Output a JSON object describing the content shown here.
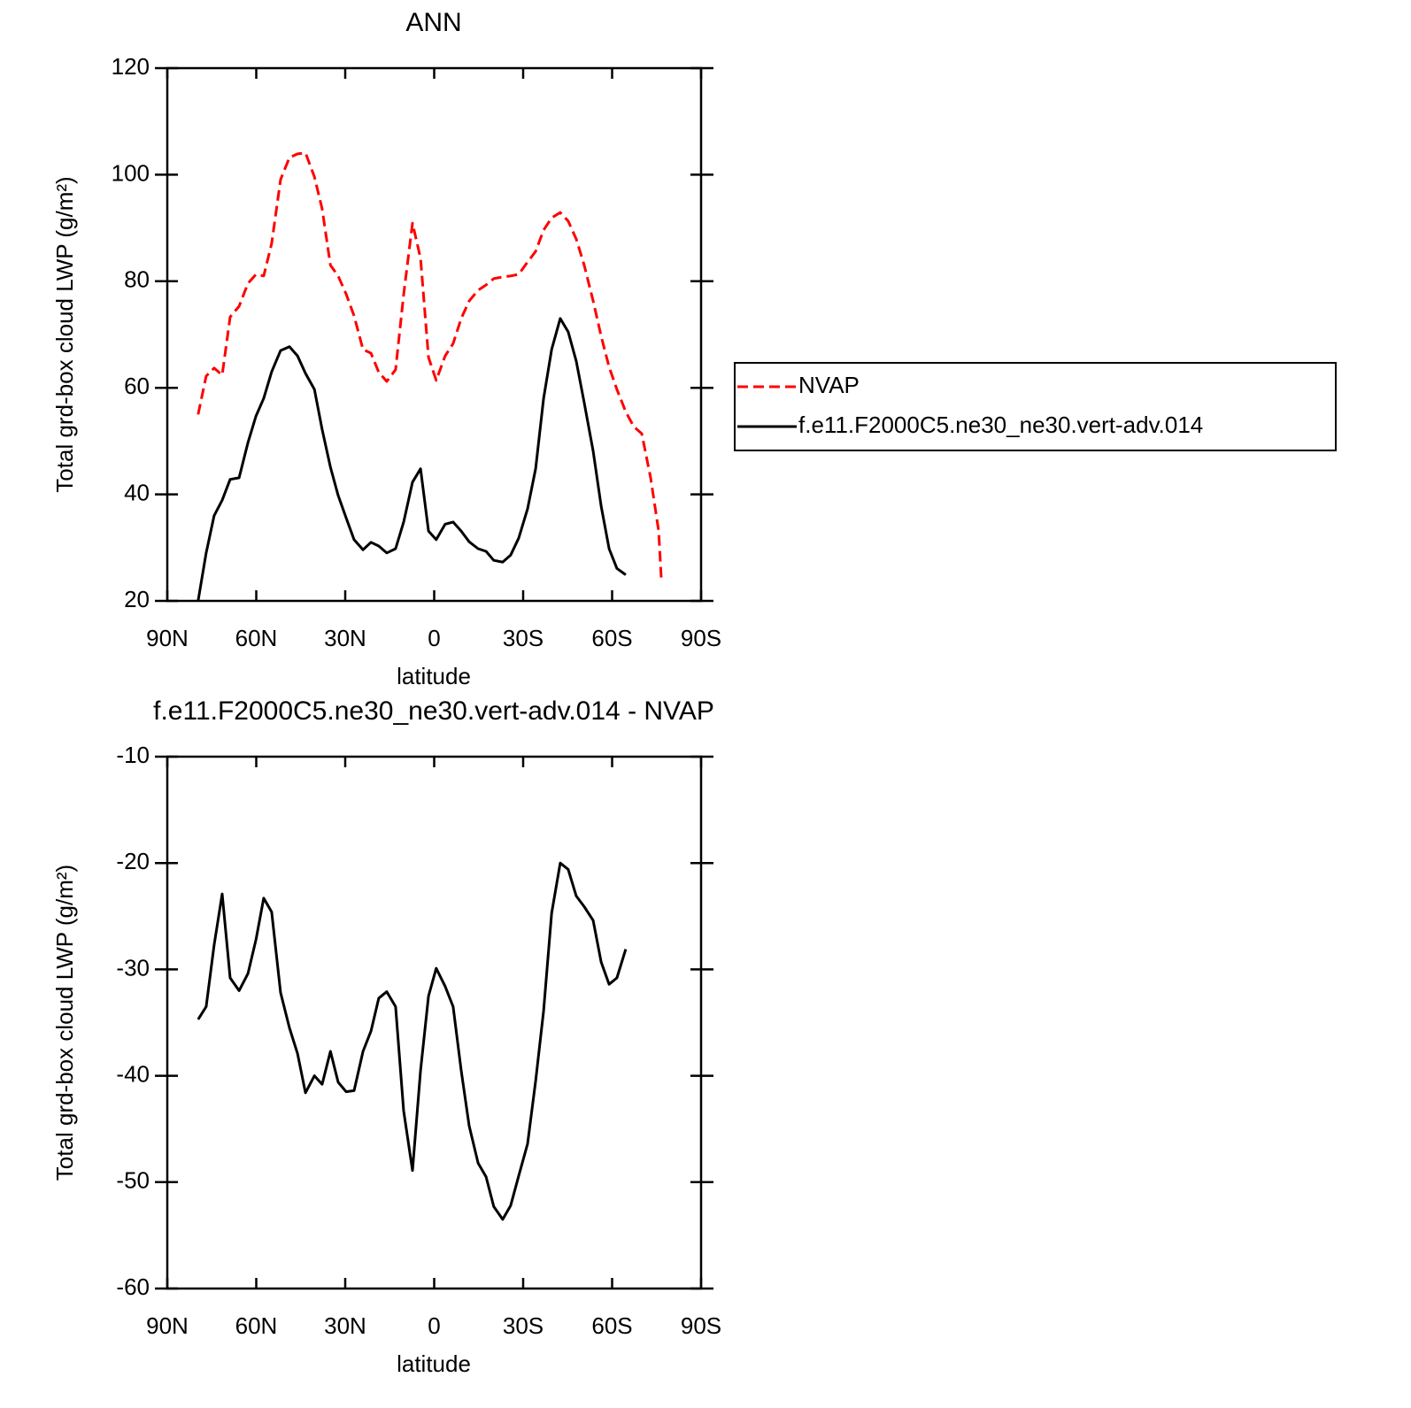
{
  "chart_data": [
    {
      "type": "line",
      "title": "ANN",
      "x_label": "latitude",
      "y_label": "Total grd-box cloud LWP (g/m²)",
      "x": [
        79.6,
        76.9,
        74.2,
        71.5,
        68.8,
        65.8,
        62.8,
        60.1,
        57.5,
        54.8,
        51.8,
        48.8,
        46.1,
        43.4,
        40.4,
        37.8,
        35.0,
        32.4,
        29.7,
        27.0,
        24.0,
        21.3,
        18.7,
        16.0,
        13.0,
        10.3,
        7.3,
        4.6,
        1.9,
        -0.7,
        -3.7,
        -6.4,
        -9.1,
        -11.8,
        -14.8,
        -17.5,
        -20.1,
        -23.1,
        -25.8,
        -28.5,
        -31.5,
        -34.2,
        -36.9,
        -39.6,
        -42.5,
        -45.2,
        -47.9,
        -50.6,
        -53.6,
        -56.3,
        -59.0,
        -61.6,
        -64.6,
        -67.3,
        -70.0,
        -73.0,
        -75.7,
        -76.6
      ],
      "xlim": [
        90,
        -90
      ],
      "xticks": [
        {
          "value": 90,
          "label": "90N"
        },
        {
          "value": 60,
          "label": "60N"
        },
        {
          "value": 30,
          "label": "30N"
        },
        0,
        {
          "value": -30,
          "label": "30S"
        },
        {
          "value": -60,
          "label": "60S"
        },
        {
          "value": -90,
          "label": "90S"
        }
      ],
      "ylim": [
        20,
        120
      ],
      "yticks": [
        20,
        40,
        60,
        80,
        100,
        120
      ],
      "legend": "right",
      "series": [
        {
          "name": "NVAP",
          "color": "#ff0000",
          "style": "dashed",
          "values": [
            55.0,
            62.2,
            63.7,
            62.4,
            73.3,
            75.3,
            79.6,
            81.3,
            81.0,
            87.1,
            99.1,
            103.2,
            103.9,
            104.1,
            99.6,
            93.6,
            83.0,
            81.0,
            77.6,
            73.5,
            67.2,
            66.5,
            62.9,
            61.2,
            63.4,
            77.5,
            90.9,
            84.3,
            65.7,
            61.4,
            66.0,
            68.3,
            73.0,
            76.3,
            78.3,
            79.3,
            80.5,
            80.8,
            81.0,
            81.3,
            83.6,
            85.6,
            89.6,
            91.9,
            92.9,
            91.3,
            87.9,
            83.0,
            76.3,
            69.7,
            63.9,
            59.7,
            55.5,
            52.7,
            51.4,
            43.1,
            33.1,
            24.0
          ]
        },
        {
          "name": "f.e11.F2000C5.ne30_ne30.vert-adv.014",
          "color": "#000000",
          "style": "solid",
          "values": [
            20.0,
            29.0,
            36.0,
            38.9,
            42.8,
            43.1,
            49.7,
            54.7,
            58.0,
            63.0,
            67.0,
            67.7,
            66.0,
            62.7,
            59.7,
            52.2,
            45.1,
            39.8,
            35.6,
            31.5,
            29.6,
            31.0,
            30.3,
            29.0,
            29.8,
            34.8,
            42.3,
            44.8,
            33.1,
            31.5,
            34.4,
            34.8,
            33.1,
            31.1,
            29.8,
            29.3,
            27.6,
            27.3,
            28.6,
            31.8,
            37.3,
            44.8,
            58.0,
            67.2,
            73.0,
            70.5,
            65.0,
            57.2,
            48.1,
            37.8,
            29.8,
            26.1,
            24.9,
            null,
            null,
            null,
            null,
            null
          ]
        }
      ]
    },
    {
      "type": "line",
      "title": "f.e11.F2000C5.ne30_ne30.vert-adv.014 - NVAP",
      "x_label": "latitude",
      "y_label": "Total grd-box cloud LWP (g/m²)",
      "x": [
        79.6,
        76.9,
        74.2,
        71.5,
        68.8,
        65.8,
        62.8,
        60.1,
        57.5,
        54.8,
        51.8,
        48.8,
        46.1,
        43.4,
        40.4,
        37.8,
        35.0,
        32.4,
        29.7,
        27.0,
        24.0,
        21.3,
        18.7,
        16.0,
        13.0,
        10.3,
        7.3,
        4.6,
        1.9,
        -0.7,
        -3.7,
        -6.4,
        -9.1,
        -11.8,
        -14.8,
        -17.5,
        -20.1,
        -23.1,
        -25.8,
        -28.5,
        -31.5,
        -34.2,
        -36.9,
        -39.6,
        -42.5,
        -45.2,
        -47.9,
        -50.6,
        -53.6,
        -56.3,
        -59.0,
        -61.6,
        -64.6
      ],
      "xlim": [
        90,
        -90
      ],
      "xticks": [
        {
          "value": 90,
          "label": "90N"
        },
        {
          "value": 60,
          "label": "60N"
        },
        {
          "value": 30,
          "label": "30N"
        },
        0,
        {
          "value": -30,
          "label": "30S"
        },
        {
          "value": -60,
          "label": "60S"
        },
        {
          "value": -90,
          "label": "90S"
        }
      ],
      "ylim": [
        -60,
        -10
      ],
      "yticks": [
        -60,
        -50,
        -40,
        -30,
        -20,
        -10
      ],
      "series": [
        {
          "color": "#000000",
          "style": "solid",
          "values": [
            -34.7,
            -33.5,
            -27.7,
            -22.9,
            -30.8,
            -32.0,
            -30.4,
            -27.2,
            -23.3,
            -24.6,
            -32.2,
            -35.5,
            -37.9,
            -41.6,
            -40.0,
            -40.8,
            -37.7,
            -40.6,
            -41.5,
            -41.4,
            -37.7,
            -35.8,
            -32.7,
            -32.1,
            -33.5,
            -43.3,
            -48.9,
            -39.5,
            -32.5,
            -29.9,
            -31.6,
            -33.5,
            -39.5,
            -44.7,
            -48.2,
            -49.5,
            -52.3,
            -53.5,
            -52.2,
            -49.4,
            -46.4,
            -40.5,
            -33.9,
            -24.7,
            -20.0,
            -20.6,
            -23.1,
            -24.1,
            -25.4,
            -29.3,
            -31.4,
            -30.8,
            -28.1
          ]
        }
      ]
    }
  ]
}
